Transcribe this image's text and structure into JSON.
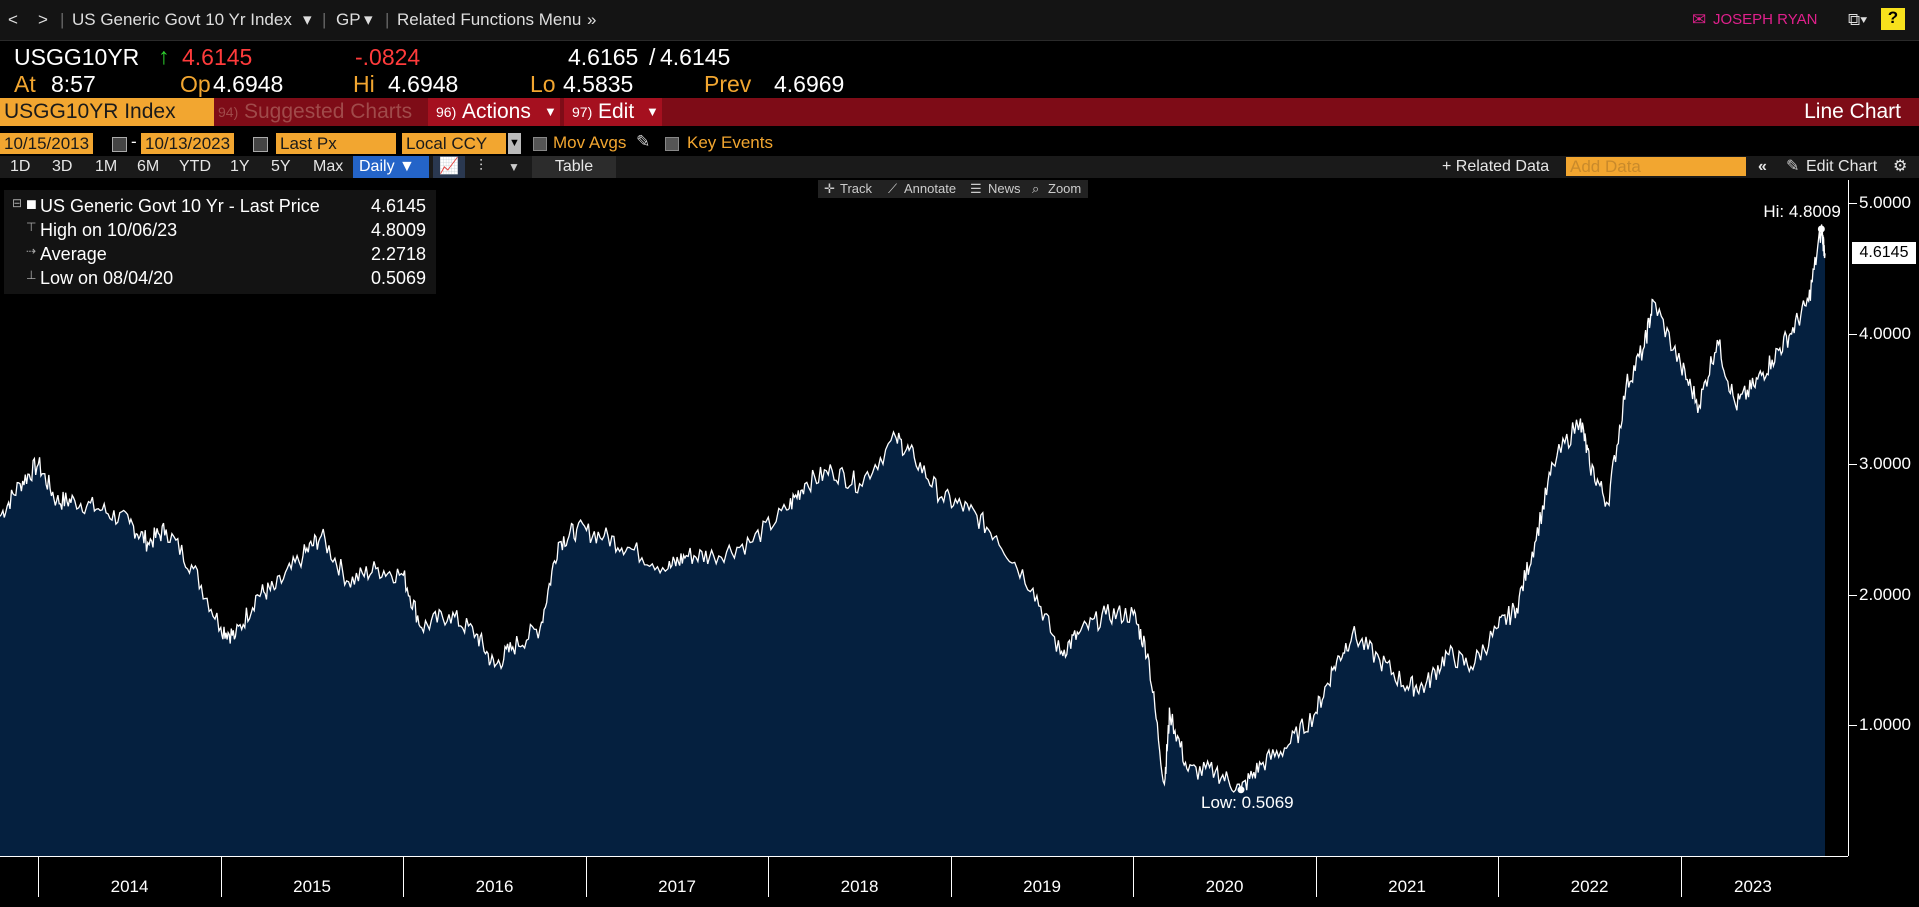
{
  "nav": {
    "back": "<",
    "forward": ">",
    "title": "US Generic Govt 10 Yr Index",
    "gp": "GP",
    "related": "Related Functions Menu",
    "user": "JOSEPH RYAN",
    "help": "?"
  },
  "quote": {
    "ticker": "USGG10YR",
    "last": "4.6145",
    "change": "-.0824",
    "bidask_bid": "4.6165",
    "bidask_ask": "4.6145",
    "at_label": "At",
    "at_time": "8:57",
    "op_label": "Op",
    "op_value": "4.6948",
    "hi_label": "Hi",
    "hi_value": "4.6948",
    "lo_label": "Lo",
    "lo_value": "4.5835",
    "prev_label": "Prev",
    "prev_value": "4.6969"
  },
  "redbar": {
    "security": "USGG10YR Index",
    "suggested_num": "94)",
    "suggested": "Suggested Charts",
    "actions_num": "96)",
    "actions": "Actions",
    "edit_num": "97)",
    "edit": "Edit",
    "chart_type": "Line Chart"
  },
  "controls": {
    "start_date": "10/15/2013",
    "dash": "-",
    "end_date": "10/13/2023",
    "field": "Last Px",
    "currency": "Local CCY",
    "mov_avgs": "Mov Avgs",
    "key_events": "Key Events",
    "related_data": "+ Related Data",
    "add_data_placeholder": "Add Data",
    "edit_chart": "Edit Chart"
  },
  "periods": [
    "1D",
    "3D",
    "1M",
    "6M",
    "YTD",
    "1Y",
    "5Y",
    "Max"
  ],
  "frequency": "Daily",
  "table_label": "Table",
  "chart_toolbar": {
    "track": "Track",
    "annotate": "Annotate",
    "news": "News",
    "zoom": "Zoom"
  },
  "legend": {
    "series_label": "US Generic Govt 10 Yr - Last Price",
    "series_value": "4.6145",
    "high_label": "High on 10/06/23",
    "high_value": "4.8009",
    "avg_label": "Average",
    "avg_value": "2.2718",
    "low_label": "Low on 08/04/20",
    "low_value": "0.5069"
  },
  "annotations": {
    "hi": "Hi: 4.8009",
    "low": "Low: 0.5069",
    "last": "4.6145"
  },
  "colors": {
    "area": "#05203f",
    "line": "#ffffff",
    "accent": "#f2a630",
    "red_bar": "#7e0c17",
    "up": "#2ed12e",
    "down": "#ff3b3b"
  },
  "chart_data": {
    "type": "area",
    "title": "US Generic Govt 10 Yr - Last Price",
    "xlabel": "",
    "ylabel": "",
    "x_tick_labels": [
      "2014",
      "2015",
      "2016",
      "2017",
      "2018",
      "2019",
      "2020",
      "2021",
      "2022",
      "2023"
    ],
    "y_tick_labels": [
      "1.0000",
      "2.0000",
      "3.0000",
      "4.0000",
      "5.0000"
    ],
    "ylim": [
      0.0,
      5.0
    ],
    "xlim": [
      2013.79,
      2023.79
    ],
    "grid": false,
    "series": [
      {
        "x": [
          2013.79,
          2013.9,
          2014.0,
          2014.1,
          2014.2,
          2014.35,
          2014.5,
          2014.6,
          2014.7,
          2014.85,
          2015.0,
          2015.08,
          2015.2,
          2015.3,
          2015.45,
          2015.55,
          2015.7,
          2015.85,
          2016.0,
          2016.1,
          2016.25,
          2016.4,
          2016.5,
          2016.6,
          2016.75,
          2016.85,
          2016.95,
          2017.1,
          2017.25,
          2017.45,
          2017.55,
          2017.7,
          2017.9,
          2018.1,
          2018.2,
          2018.35,
          2018.5,
          2018.7,
          2018.8,
          2018.95,
          2019.1,
          2019.25,
          2019.45,
          2019.6,
          2019.7,
          2019.85,
          2020.0,
          2020.08,
          2020.17,
          2020.2,
          2020.3,
          2020.45,
          2020.59,
          2020.7,
          2020.85,
          2021.0,
          2021.1,
          2021.2,
          2021.35,
          2021.5,
          2021.6,
          2021.72,
          2021.85,
          2022.0,
          2022.1,
          2022.2,
          2022.3,
          2022.45,
          2022.5,
          2022.6,
          2022.7,
          2022.8,
          2022.85,
          2023.0,
          2023.1,
          2023.2,
          2023.3,
          2023.4,
          2023.5,
          2023.6,
          2023.7,
          2023.77,
          2023.79
        ],
        "y": [
          2.6,
          2.85,
          3.0,
          2.72,
          2.72,
          2.65,
          2.55,
          2.4,
          2.5,
          2.2,
          1.75,
          1.68,
          2.0,
          2.05,
          2.3,
          2.45,
          2.1,
          2.2,
          2.15,
          1.75,
          1.85,
          1.7,
          1.45,
          1.6,
          1.75,
          2.4,
          2.5,
          2.45,
          2.35,
          2.2,
          2.3,
          2.3,
          2.4,
          2.65,
          2.85,
          2.95,
          2.85,
          3.2,
          3.05,
          2.75,
          2.65,
          2.45,
          2.05,
          1.55,
          1.7,
          1.85,
          1.85,
          1.55,
          0.55,
          1.1,
          0.65,
          0.65,
          0.5069,
          0.7,
          0.85,
          1.1,
          1.45,
          1.7,
          1.5,
          1.3,
          1.3,
          1.55,
          1.45,
          1.75,
          1.9,
          2.4,
          3.0,
          3.35,
          3.0,
          2.7,
          3.6,
          3.9,
          4.25,
          3.75,
          3.45,
          3.95,
          3.45,
          3.6,
          3.8,
          4.0,
          4.25,
          4.8009,
          4.6145
        ]
      }
    ]
  }
}
